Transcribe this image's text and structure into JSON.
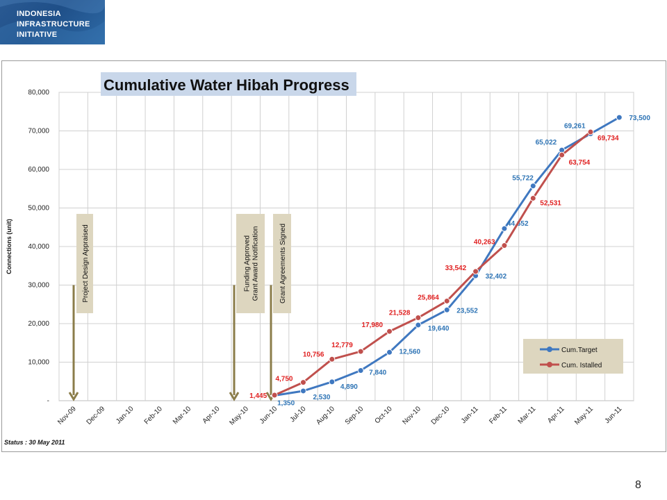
{
  "logo": {
    "lines": [
      "INDONESIA",
      "INFRASTRUCTURE",
      "INITIATIVE"
    ],
    "background_color": "#2a5a93"
  },
  "status_text": "Status : 30 May 2011",
  "page_number": "8",
  "chart_data": {
    "type": "line",
    "title": "Cumulative Water Hibah Progress",
    "ylabel": "Connections (unit)",
    "xlabel": "",
    "ylim": [
      0,
      80000
    ],
    "y_ticks": [
      {
        "value": 0,
        "label": "-"
      },
      {
        "value": 10000,
        "label": "10,000"
      },
      {
        "value": 20000,
        "label": "20,000"
      },
      {
        "value": 30000,
        "label": "30,000"
      },
      {
        "value": 40000,
        "label": "40,000"
      },
      {
        "value": 50000,
        "label": "50,000"
      },
      {
        "value": 60000,
        "label": "60,000"
      },
      {
        "value": 70000,
        "label": "70,000"
      },
      {
        "value": 80000,
        "label": "80,000"
      }
    ],
    "categories": [
      "Nov-09",
      "Dec-09",
      "Jan-10",
      "Feb-10",
      "Mar-10",
      "Apr-10",
      "May-10",
      "Jun-10",
      "Jul-10",
      "Aug-10",
      "Sep-10",
      "Oct-10",
      "Nov-10",
      "Dec-10",
      "Jan-11",
      "Feb-11",
      "Mar-11",
      "Apr-11",
      "May-11",
      "Jun-11"
    ],
    "grid": true,
    "legend_position": "bottom-right",
    "series": [
      {
        "name": "Cum.Target",
        "color": "#3f78c0",
        "label_color": "#2e74b5",
        "values": [
          null,
          null,
          null,
          null,
          null,
          null,
          null,
          1350,
          2530,
          4890,
          7840,
          12560,
          19640,
          23552,
          32402,
          44652,
          55722,
          65022,
          69261,
          73500
        ],
        "labels": [
          null,
          null,
          null,
          null,
          null,
          null,
          null,
          "1,350",
          "2,530",
          "4,890",
          "7,840",
          "12,560",
          "19,640",
          "23,552",
          "32,402",
          "44,652",
          "55,722",
          "65,022",
          "69,261",
          "73,500"
        ]
      },
      {
        "name": "Cum. Istalled",
        "color": "#c0504d",
        "label_color": "#e02020",
        "values": [
          null,
          null,
          null,
          null,
          null,
          null,
          null,
          1445,
          4750,
          10756,
          12779,
          17980,
          21528,
          25864,
          33542,
          40263,
          52531,
          63754,
          69734,
          null
        ],
        "labels": [
          null,
          null,
          null,
          null,
          null,
          null,
          null,
          "1,445",
          "4,750",
          "10,756",
          "12,779",
          "17,980",
          "21,528",
          "25,864",
          "33,542",
          "40,263",
          "52,531",
          "63,754",
          "69,734",
          null
        ]
      }
    ],
    "annotations": [
      {
        "text_lines": [
          "Project Design Appraised"
        ],
        "category": "Nov-09",
        "arrow_from": 30000
      },
      {
        "text_lines": [
          "Funding Approved",
          "Grant Award Notification"
        ],
        "category": "May-10",
        "arrow_from": 30000
      },
      {
        "text_lines": [
          "Grant Agreements  Signed"
        ],
        "category": "Jun-10",
        "arrow_from": 30000
      }
    ],
    "annotation_color": "#8b7d4a",
    "annotation_bg": "#ddd6bf",
    "legend_bg": "#ddd6bf",
    "title_bg": "#c9d7ea"
  }
}
